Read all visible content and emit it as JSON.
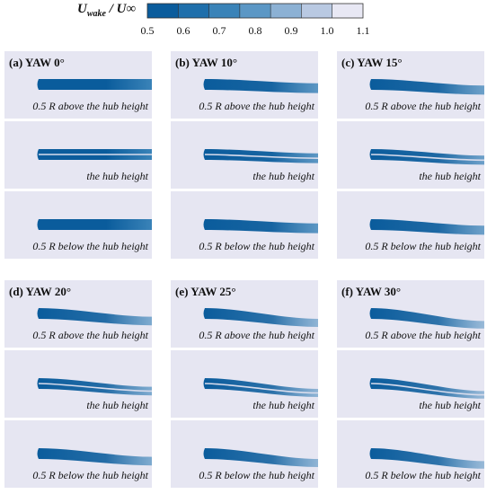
{
  "chart_data": {
    "type": "heatmap",
    "colorbar": {
      "label_main": "U",
      "label_sub": "wake",
      "label_rest": " / U",
      "label_inf": "∞",
      "ticks": [
        0.5,
        0.6,
        0.7,
        0.8,
        0.9,
        1.0,
        1.1
      ],
      "tick_labels": [
        "0.5",
        "0.6",
        "0.7",
        "0.8",
        "0.9",
        "1.0",
        "1.1"
      ],
      "colors": [
        "#0a5c9c",
        "#1f6fab",
        "#3a83b8",
        "#5b97c5",
        "#8cb1d4",
        "#b9c9e2",
        "#e8e8f4"
      ]
    },
    "panels": [
      {
        "title": "(a) YAW 0°",
        "yaw_deg": 0
      },
      {
        "title": "(b) YAW 10°",
        "yaw_deg": 10
      },
      {
        "title": "(c) YAW 15°",
        "yaw_deg": 15
      },
      {
        "title": "(d) YAW 20°",
        "yaw_deg": 20
      },
      {
        "title": "(e) YAW 25°",
        "yaw_deg": 25
      },
      {
        "title": "(f) YAW 30°",
        "yaw_deg": 30
      }
    ],
    "planes": [
      {
        "caption": "0.5 R above the hub height"
      },
      {
        "caption": "the hub height"
      },
      {
        "caption": "0.5 R below the hub height"
      }
    ],
    "background_color": "#e6e6f2"
  }
}
